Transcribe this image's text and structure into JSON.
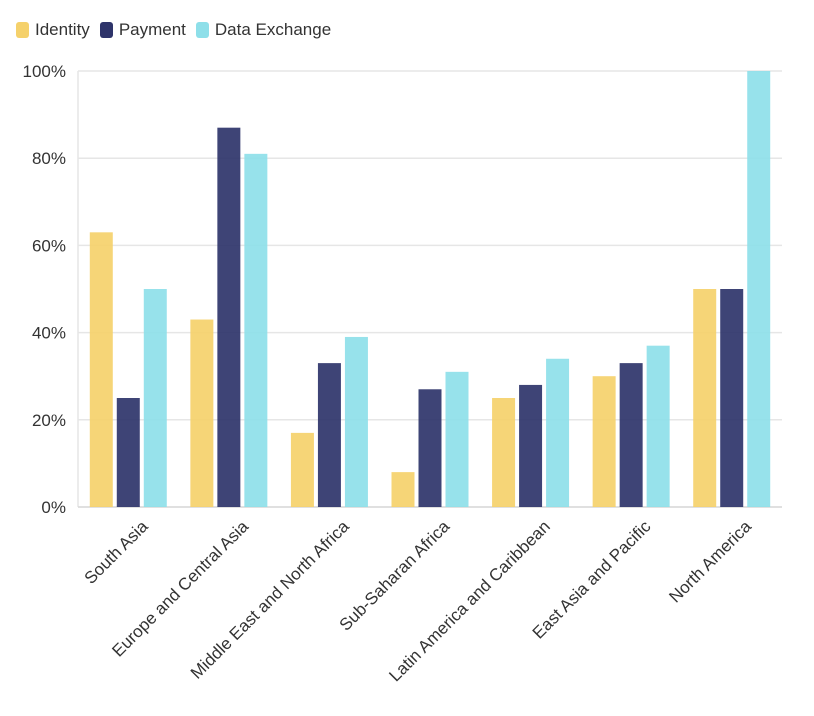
{
  "chart_data": {
    "type": "bar",
    "title": "",
    "xlabel": "",
    "ylabel": "",
    "ylim": [
      0,
      100
    ],
    "y_ticks": [
      {
        "value": 0,
        "label": "0%"
      },
      {
        "value": 20,
        "label": "20%"
      },
      {
        "value": 40,
        "label": "40%"
      },
      {
        "value": 60,
        "label": "60%"
      },
      {
        "value": 80,
        "label": "80%"
      },
      {
        "value": 100,
        "label": "100%"
      }
    ],
    "grid": true,
    "legend_position": "top-left",
    "categories": [
      "South Asia",
      "Europe and Central Asia",
      "Middle East and North Africa",
      "Sub-Saharan Africa",
      "Latin America and Caribbean",
      "East Asia and Pacific",
      "North America"
    ],
    "series": [
      {
        "name": "Identity",
        "color": "#F5D16B",
        "values": [
          63,
          43,
          17,
          8,
          25,
          30,
          50
        ]
      },
      {
        "name": "Payment",
        "color": "#2E346A",
        "values": [
          25,
          87,
          33,
          27,
          28,
          33,
          50
        ]
      },
      {
        "name": "Data Exchange",
        "color": "#8EDFE9",
        "values": [
          50,
          81,
          39,
          31,
          34,
          37,
          100
        ]
      }
    ]
  }
}
